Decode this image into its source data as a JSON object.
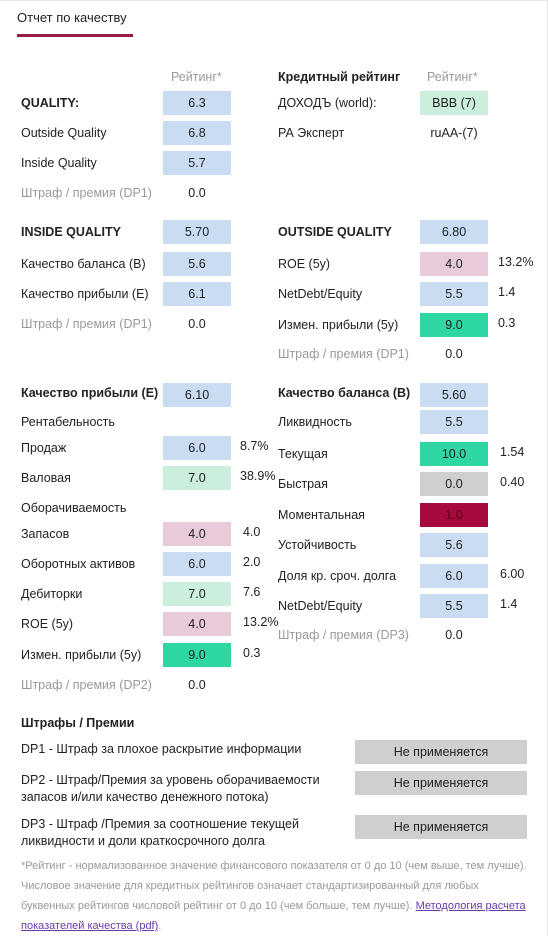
{
  "tab": {
    "label": "Отчет по качеству"
  },
  "quality_block": {
    "rating_header": "Рейтинг*",
    "rows": [
      {
        "label": "QUALITY:",
        "value": "6.3",
        "style": "blue",
        "bold": true
      },
      {
        "label": "Outside Quality",
        "value": "6.8",
        "style": "blue"
      },
      {
        "label": "Inside Quality",
        "value": "5.7",
        "style": "blue"
      },
      {
        "label": "Штраф / премия (DP1)",
        "value": "0.0",
        "style": "plain",
        "muted": true
      }
    ]
  },
  "credit_block": {
    "title": "Кредитный рейтинг",
    "rating_header": "Рейтинг*",
    "rows": [
      {
        "label": "ДОХОДЪ (world):",
        "value": "BBB (7)",
        "style": "lgreen"
      },
      {
        "label": "РА Эксперт",
        "value": "ruAA-(7)",
        "style": "plain"
      }
    ]
  },
  "inside_quality": {
    "rows": [
      {
        "label": "INSIDE QUALITY",
        "value": "5.70",
        "style": "blue",
        "bold": true
      },
      {
        "label": "Качество баланса (B)",
        "value": "5.6",
        "style": "blue"
      },
      {
        "label": "Качество прибыли (E)",
        "value": "6.1",
        "style": "blue"
      },
      {
        "label": "Штраф / премия (DP1)",
        "value": "0.0",
        "style": "plain",
        "muted": true
      }
    ]
  },
  "outside_quality": {
    "rows": [
      {
        "label": "OUTSIDE QUALITY",
        "value": "6.80",
        "style": "blue",
        "bold": true,
        "extra": ""
      },
      {
        "label": "ROE (5y)",
        "value": "4.0",
        "style": "pink",
        "extra": "13.2%"
      },
      {
        "label": "NetDebt/Equity",
        "value": "5.5",
        "style": "blue",
        "extra": "1.4"
      },
      {
        "label": "Измен. прибыли (5y)",
        "value": "9.0",
        "style": "green",
        "extra": "0.3"
      },
      {
        "label": "Штраф / премия (DP1)",
        "value": "0.0",
        "style": "plain",
        "muted": true,
        "extra": ""
      }
    ]
  },
  "earnings_quality": {
    "title": "Качество прибыли (E)",
    "title_value": "6.10",
    "profitability_header": "Рентабельность",
    "profitability": [
      {
        "label": "Продаж",
        "value": "6.0",
        "style": "blue",
        "extra": "8.7%"
      },
      {
        "label": "Валовая",
        "value": "7.0",
        "style": "lgreen",
        "extra": "38.9%"
      }
    ],
    "turnover_header": "Оборачиваемость",
    "turnover": [
      {
        "label": "Запасов",
        "value": "4.0",
        "style": "pink",
        "extra": "4.0"
      },
      {
        "label": "Оборотных активов",
        "value": "6.0",
        "style": "blue",
        "extra": "2.0"
      },
      {
        "label": "Дебиторки",
        "value": "7.0",
        "style": "lgreen",
        "extra": "7.6"
      },
      {
        "label": "ROE (5y)",
        "value": "4.0",
        "style": "pink",
        "extra": "13.2%"
      },
      {
        "label": "Измен. прибыли (5y)",
        "value": "9.0",
        "style": "green",
        "extra": "0.3"
      }
    ],
    "penalty": {
      "label": "Штраф / премия (DP2)",
      "value": "0.0"
    }
  },
  "balance_quality": {
    "title": "Качество баланса (B)",
    "title_value": "5.60",
    "liquidity": {
      "label": "Ликвидность",
      "value": "5.5",
      "style": "blue"
    },
    "liquidity_rows": [
      {
        "label": "Текущая",
        "value": "10.0",
        "style": "green",
        "extra": "1.54"
      },
      {
        "label": "Быстрая",
        "value": "0.0",
        "style": "gray",
        "extra": "0.40"
      },
      {
        "label": "Моментальная",
        "value": "1.0",
        "style": "dred",
        "extra": ""
      }
    ],
    "stability": {
      "label": "Устойчивость",
      "value": "5.6",
      "style": "blue"
    },
    "stability_rows": [
      {
        "label": "Доля кр. сроч. долга",
        "value": "6.0",
        "style": "blue",
        "extra": "6.00"
      },
      {
        "label": "NetDebt/Equity",
        "value": "5.5",
        "style": "blue",
        "extra": "1.4"
      }
    ],
    "penalty": {
      "label": "Штраф / премия (DP3)",
      "value": "0.0"
    }
  },
  "penalties": {
    "title": "Штрафы / Премии",
    "items": [
      {
        "text": "DP1 - Штраф за плохое раскрытие информации",
        "button": "Не применяется"
      },
      {
        "text": "DP2 - Штраф/Премия за уровень оборачиваемости запасов и/или качество денежного потока)",
        "button": "Не применяется"
      },
      {
        "text": "DP3 - Штраф /Премия за соотношение текущей ликвидности и доли краткосрочного долга",
        "button": "Не применяется"
      }
    ]
  },
  "footnote": {
    "text": "*Рейтинг - нормализованное значение финансового показателя от 0 до 10 (чем выше, тем лучше). Числовое значение для кредитных рейтингов означает стандартизированный для любых буквенных рейтингов числовой рейтинг от 0 до 10 (чем больше, тем лучше).",
    "link": "Методология расчета показателей качества (pdf)",
    "link_suffix": "."
  }
}
